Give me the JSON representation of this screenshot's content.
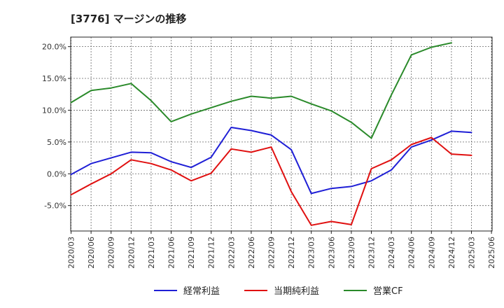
{
  "title": "[3776]  マージンの推移",
  "colors": {
    "series": [
      "#1f1fd6",
      "#e01010",
      "#2a8a2a"
    ]
  },
  "chart_data": {
    "type": "line",
    "x": [
      "2020/03",
      "2020/06",
      "2020/09",
      "2020/12",
      "2021/03",
      "2021/06",
      "2021/09",
      "2021/12",
      "2022/03",
      "2022/06",
      "2022/09",
      "2022/12",
      "2023/03",
      "2023/06",
      "2023/09",
      "2023/12",
      "2024/03",
      "2024/06",
      "2024/09",
      "2024/12",
      "2025/03",
      "2025/06"
    ],
    "yticks": [
      -5,
      0,
      5,
      10,
      15,
      20
    ],
    "ytick_labels": [
      "-5.0%",
      "0.0%",
      "5.0%",
      "10.0%",
      "15.0%",
      "20.0%"
    ],
    "ylim": [
      -9,
      21.5
    ],
    "grid": true,
    "legend_position": "bottom",
    "series": [
      {
        "name": "経常利益",
        "color": "#1f1fd6",
        "values": [
          -0.1,
          1.6,
          2.5,
          3.4,
          3.3,
          1.9,
          1.0,
          2.6,
          7.3,
          6.8,
          6.1,
          3.8,
          -3.1,
          -2.3,
          -2.0,
          -1.1,
          0.6,
          4.2,
          5.3,
          6.7,
          6.5,
          null
        ]
      },
      {
        "name": "当期純利益",
        "color": "#e01010",
        "values": [
          -3.3,
          -1.6,
          0.0,
          2.2,
          1.6,
          0.6,
          -1.1,
          0.1,
          3.9,
          3.4,
          4.2,
          -2.8,
          -8.1,
          -7.5,
          -8.0,
          0.8,
          2.2,
          4.6,
          5.7,
          3.1,
          2.9,
          null
        ]
      },
      {
        "name": "営業CF",
        "color": "#2a8a2a",
        "values": [
          11.2,
          13.1,
          13.5,
          14.2,
          11.5,
          8.2,
          9.4,
          10.4,
          11.4,
          12.2,
          11.9,
          12.2,
          11.0,
          9.9,
          8.1,
          5.6,
          12.4,
          18.7,
          19.9,
          20.6,
          null,
          null
        ]
      }
    ]
  }
}
